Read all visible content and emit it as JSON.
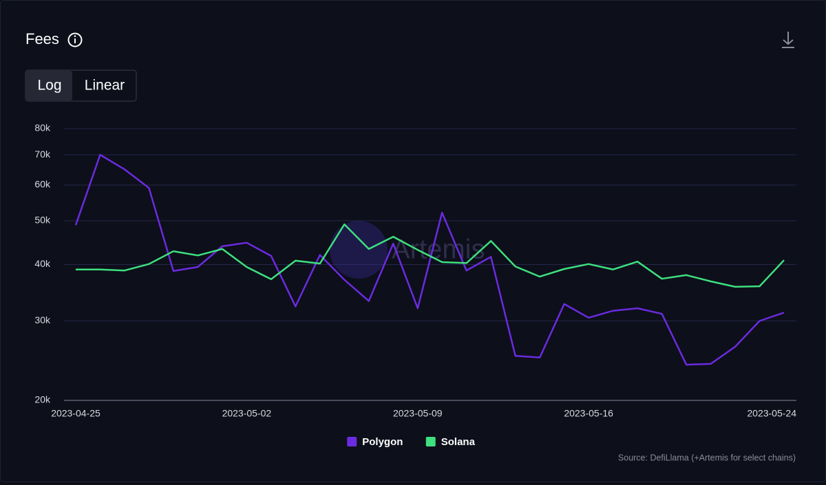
{
  "chart_data": {
    "type": "line",
    "title": "Fees",
    "scale_options": [
      "Log",
      "Linear"
    ],
    "log_scale": true,
    "watermark": "Artemis",
    "source": "Source: DefiLlama (+Artemis for select chains)",
    "x": [
      "2023-04-25",
      "2023-04-26",
      "2023-04-27",
      "2023-04-28",
      "2023-04-29",
      "2023-04-30",
      "2023-05-01",
      "2023-05-02",
      "2023-05-03",
      "2023-05-04",
      "2023-05-05",
      "2023-05-06",
      "2023-05-07",
      "2023-05-08",
      "2023-05-09",
      "2023-05-10",
      "2023-05-11",
      "2023-05-12",
      "2023-05-13",
      "2023-05-14",
      "2023-05-15",
      "2023-05-16",
      "2023-05-17",
      "2023-05-18",
      "2023-05-19",
      "2023-05-20",
      "2023-05-21",
      "2023-05-22",
      "2023-05-23",
      "2023-05-24"
    ],
    "xticks": [
      "2023-04-25",
      "2023-05-02",
      "2023-05-09",
      "2023-05-16",
      "2023-05-24"
    ],
    "series": [
      {
        "name": "Polygon",
        "color": "#6b2be0",
        "values": [
          48900,
          70000,
          65000,
          59100,
          38700,
          39500,
          43900,
          44700,
          41800,
          32300,
          42000,
          37000,
          33200,
          44500,
          32000,
          52100,
          38800,
          41600,
          25100,
          24900,
          32700,
          30500,
          31600,
          32000,
          31100,
          24000,
          24100,
          26300,
          30000,
          31300
        ]
      },
      {
        "name": "Solana",
        "color": "#3ee07f",
        "values": [
          39000,
          39000,
          38800,
          40100,
          42800,
          41900,
          43300,
          39500,
          37100,
          40800,
          40200,
          49100,
          43300,
          46100,
          43100,
          40500,
          40300,
          45100,
          39600,
          37600,
          39100,
          40100,
          39000,
          40600,
          37200,
          37900,
          36700,
          35700,
          35800,
          40900
        ]
      }
    ],
    "ylim": [
      20000,
      80000
    ],
    "yticks": [
      {
        "value": 20000,
        "label": "20k"
      },
      {
        "value": 30000,
        "label": "30k"
      },
      {
        "value": 40000,
        "label": "40k"
      },
      {
        "value": 50000,
        "label": "50k"
      },
      {
        "value": 60000,
        "label": "60k"
      },
      {
        "value": 70000,
        "label": "70k"
      },
      {
        "value": 80000,
        "label": "80k"
      }
    ],
    "grid": true
  }
}
